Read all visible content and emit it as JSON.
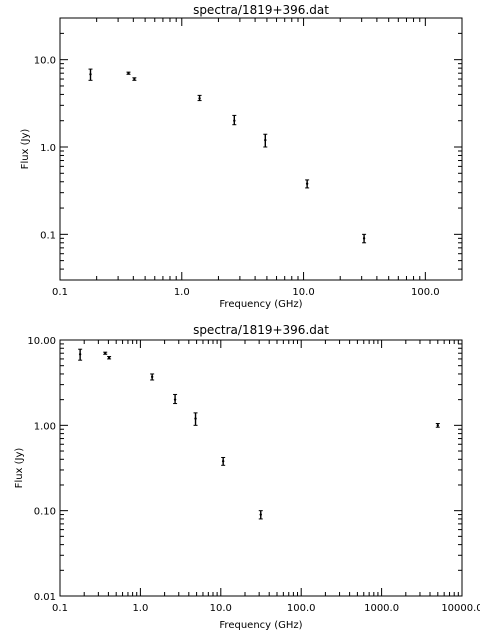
{
  "chart_data": [
    {
      "type": "scatter",
      "title": "spectra/1819+396.dat",
      "xlabel": "Frequency (GHz)",
      "ylabel": "Flux (Jy)",
      "xscale": "log",
      "yscale": "log",
      "xlim": [
        0.1,
        200
      ],
      "ylim": [
        0.03,
        30
      ],
      "grid": false,
      "xticks": [
        {
          "value": 0.1,
          "label": "0.1"
        },
        {
          "value": 1,
          "label": "1.0"
        },
        {
          "value": 10,
          "label": "10.0"
        },
        {
          "value": 100,
          "label": "100.0"
        }
      ],
      "yticks": [
        {
          "value": 0.1,
          "label": "0.1"
        },
        {
          "value": 1,
          "label": "1.0"
        },
        {
          "value": 10,
          "label": "10.0"
        }
      ],
      "points": [
        {
          "x": 0.178,
          "y": 6.8,
          "ylo": 5.8,
          "yhi": 7.8
        },
        {
          "x": 0.365,
          "y": 7.0,
          "ylo": 6.8,
          "yhi": 7.2
        },
        {
          "x": 0.408,
          "y": 6.0,
          "ylo": 5.8,
          "yhi": 6.2
        },
        {
          "x": 1.4,
          "y": 3.6,
          "ylo": 3.4,
          "yhi": 3.9
        },
        {
          "x": 2.7,
          "y": 2.0,
          "ylo": 1.8,
          "yhi": 2.3
        },
        {
          "x": 4.85,
          "y": 1.2,
          "ylo": 1.0,
          "yhi": 1.4
        },
        {
          "x": 10.7,
          "y": 0.38,
          "ylo": 0.34,
          "yhi": 0.42
        },
        {
          "x": 31.4,
          "y": 0.09,
          "ylo": 0.08,
          "yhi": 0.1
        }
      ]
    },
    {
      "type": "scatter",
      "title": "spectra/1819+396.dat",
      "xlabel": "Frequency (GHz)",
      "ylabel": "Flux (Jy)",
      "xscale": "log",
      "yscale": "log",
      "xlim": [
        0.1,
        10000
      ],
      "ylim": [
        0.01,
        10
      ],
      "grid": false,
      "xticks": [
        {
          "value": 0.1,
          "label": "0.1"
        },
        {
          "value": 1,
          "label": "1.0"
        },
        {
          "value": 10,
          "label": "10.0"
        },
        {
          "value": 100,
          "label": "100.0"
        },
        {
          "value": 1000,
          "label": "1000.0"
        },
        {
          "value": 10000,
          "label": "10000.0"
        }
      ],
      "yticks": [
        {
          "value": 0.01,
          "label": "0.01"
        },
        {
          "value": 0.1,
          "label": "0.10"
        },
        {
          "value": 1,
          "label": "1.00"
        },
        {
          "value": 10,
          "label": "10.00"
        }
      ],
      "points": [
        {
          "x": 0.178,
          "y": 6.8,
          "ylo": 5.8,
          "yhi": 7.8
        },
        {
          "x": 0.365,
          "y": 7.0,
          "ylo": 6.8,
          "yhi": 7.2
        },
        {
          "x": 0.408,
          "y": 6.2,
          "ylo": 6.0,
          "yhi": 6.4
        },
        {
          "x": 1.4,
          "y": 3.7,
          "ylo": 3.4,
          "yhi": 4.0
        },
        {
          "x": 2.7,
          "y": 2.0,
          "ylo": 1.8,
          "yhi": 2.3
        },
        {
          "x": 4.85,
          "y": 1.2,
          "ylo": 1.0,
          "yhi": 1.4
        },
        {
          "x": 10.7,
          "y": 0.38,
          "ylo": 0.34,
          "yhi": 0.42
        },
        {
          "x": 31.4,
          "y": 0.09,
          "ylo": 0.08,
          "yhi": 0.1
        },
        {
          "x": 5000,
          "y": 1.0,
          "ylo": 0.95,
          "yhi": 1.05
        }
      ]
    }
  ]
}
